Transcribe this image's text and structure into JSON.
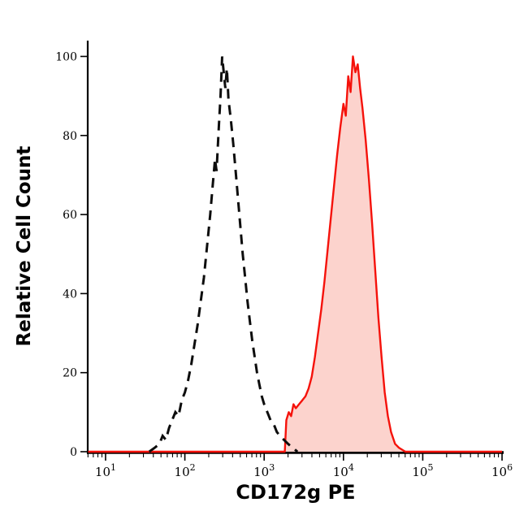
{
  "figure": {
    "background": "#ffffff"
  },
  "chart_data": {
    "type": "area",
    "title": "",
    "xlabel": "CD172g PE",
    "ylabel": "Relative Cell Count",
    "x_scale": "log10",
    "x_range_log10": [
      0.775,
      6.02
    ],
    "ylim": [
      0,
      104
    ],
    "y_ticks": [
      0,
      20,
      40,
      60,
      80,
      100
    ],
    "x_tick_exponents": [
      1,
      2,
      3,
      4,
      5,
      6
    ],
    "x_tick_base": "10",
    "grid": false,
    "legend_position": "none",
    "axis_color": "#000000",
    "series": [
      {
        "name": "red-filled",
        "style": "solid",
        "color": "#f5120b",
        "fill": "#fcd3cd",
        "points": [
          [
            0.78,
            0
          ],
          [
            3.26,
            0
          ],
          [
            3.28,
            8
          ],
          [
            3.31,
            10
          ],
          [
            3.34,
            9
          ],
          [
            3.37,
            12
          ],
          [
            3.4,
            11
          ],
          [
            3.44,
            12
          ],
          [
            3.48,
            13
          ],
          [
            3.52,
            14
          ],
          [
            3.56,
            16
          ],
          [
            3.6,
            19
          ],
          [
            3.64,
            24
          ],
          [
            3.68,
            30
          ],
          [
            3.72,
            36
          ],
          [
            3.76,
            43
          ],
          [
            3.8,
            51
          ],
          [
            3.84,
            59
          ],
          [
            3.88,
            67
          ],
          [
            3.92,
            75
          ],
          [
            3.96,
            82
          ],
          [
            4.0,
            88
          ],
          [
            4.03,
            85
          ],
          [
            4.06,
            95
          ],
          [
            4.09,
            91
          ],
          [
            4.12,
            100
          ],
          [
            4.15,
            96
          ],
          [
            4.18,
            98
          ],
          [
            4.21,
            92
          ],
          [
            4.24,
            87
          ],
          [
            4.28,
            79
          ],
          [
            4.32,
            69
          ],
          [
            4.36,
            58
          ],
          [
            4.4,
            46
          ],
          [
            4.44,
            34
          ],
          [
            4.48,
            24
          ],
          [
            4.52,
            15
          ],
          [
            4.56,
            9
          ],
          [
            4.6,
            5
          ],
          [
            4.65,
            2
          ],
          [
            4.7,
            1
          ],
          [
            4.78,
            0
          ],
          [
            6.0,
            0
          ]
        ]
      },
      {
        "name": "black-dashed",
        "style": "dashed",
        "color": "#0d0d0d",
        "fill": "none",
        "points": [
          [
            1.55,
            0
          ],
          [
            1.62,
            1
          ],
          [
            1.68,
            2
          ],
          [
            1.72,
            4
          ],
          [
            1.76,
            3
          ],
          [
            1.8,
            6
          ],
          [
            1.84,
            8
          ],
          [
            1.88,
            10
          ],
          [
            1.92,
            9
          ],
          [
            1.96,
            13
          ],
          [
            2.0,
            15
          ],
          [
            2.04,
            18
          ],
          [
            2.08,
            22
          ],
          [
            2.12,
            27
          ],
          [
            2.16,
            32
          ],
          [
            2.2,
            38
          ],
          [
            2.24,
            44
          ],
          [
            2.28,
            52
          ],
          [
            2.32,
            60
          ],
          [
            2.35,
            67
          ],
          [
            2.38,
            74
          ],
          [
            2.4,
            71
          ],
          [
            2.43,
            83
          ],
          [
            2.45,
            90
          ],
          [
            2.47,
            100
          ],
          [
            2.49,
            96
          ],
          [
            2.51,
            92
          ],
          [
            2.53,
            97
          ],
          [
            2.55,
            89
          ],
          [
            2.58,
            84
          ],
          [
            2.61,
            78
          ],
          [
            2.64,
            71
          ],
          [
            2.67,
            64
          ],
          [
            2.7,
            57
          ],
          [
            2.73,
            50
          ],
          [
            2.76,
            44
          ],
          [
            2.79,
            38
          ],
          [
            2.82,
            33
          ],
          [
            2.85,
            28
          ],
          [
            2.88,
            24
          ],
          [
            2.91,
            20
          ],
          [
            2.94,
            17
          ],
          [
            2.97,
            14
          ],
          [
            3.0,
            12
          ],
          [
            3.04,
            10
          ],
          [
            3.08,
            8
          ],
          [
            3.12,
            7
          ],
          [
            3.16,
            5
          ],
          [
            3.2,
            4
          ],
          [
            3.25,
            3
          ],
          [
            3.3,
            2
          ],
          [
            3.36,
            1
          ],
          [
            3.42,
            0
          ]
        ]
      }
    ]
  }
}
